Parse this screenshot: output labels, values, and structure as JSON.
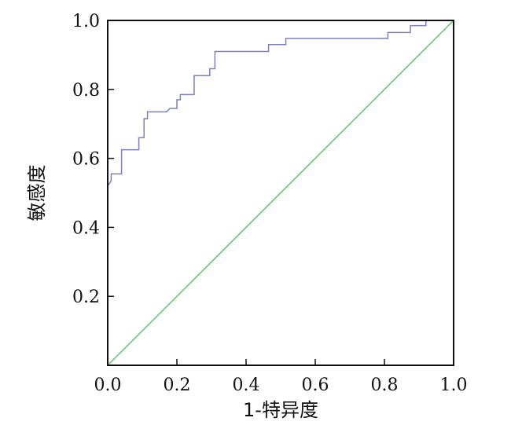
{
  "chart_data": {
    "type": "line",
    "title": "",
    "xlabel": "1-特异度",
    "ylabel": "敏感度",
    "xlim": [
      0.0,
      1.0
    ],
    "ylim": [
      0.0,
      1.0
    ],
    "x_ticks": [
      "0.0",
      "0.2",
      "0.4",
      "0.6",
      "0.8",
      "1.0"
    ],
    "y_ticks": [
      "0.2",
      "0.4",
      "0.6",
      "0.8",
      "1.0"
    ],
    "grid": false,
    "colors": {
      "roc": "#7b7fc4",
      "reference": "#5ec46e"
    },
    "series": [
      {
        "x": [
          0.0,
          0.0,
          0.01,
          0.01,
          0.04,
          0.04,
          0.09,
          0.09,
          0.105,
          0.105,
          0.115,
          0.115,
          0.17,
          0.18,
          0.2,
          0.2,
          0.21,
          0.21,
          0.25,
          0.25,
          0.295,
          0.295,
          0.31,
          0.31,
          0.465,
          0.465,
          0.515,
          0.515,
          0.81,
          0.81,
          0.875,
          0.875,
          0.92,
          0.92,
          1.0
        ],
        "y": [
          0.0,
          0.52,
          0.535,
          0.555,
          0.555,
          0.625,
          0.625,
          0.66,
          0.66,
          0.715,
          0.715,
          0.735,
          0.735,
          0.745,
          0.745,
          0.77,
          0.77,
          0.785,
          0.785,
          0.84,
          0.84,
          0.86,
          0.86,
          0.91,
          0.91,
          0.93,
          0.93,
          0.948,
          0.948,
          0.965,
          0.965,
          0.985,
          0.985,
          1.0,
          1.0
        ]
      },
      {
        "x": [
          0.0,
          1.0
        ],
        "y": [
          0.0,
          1.0
        ]
      }
    ]
  }
}
